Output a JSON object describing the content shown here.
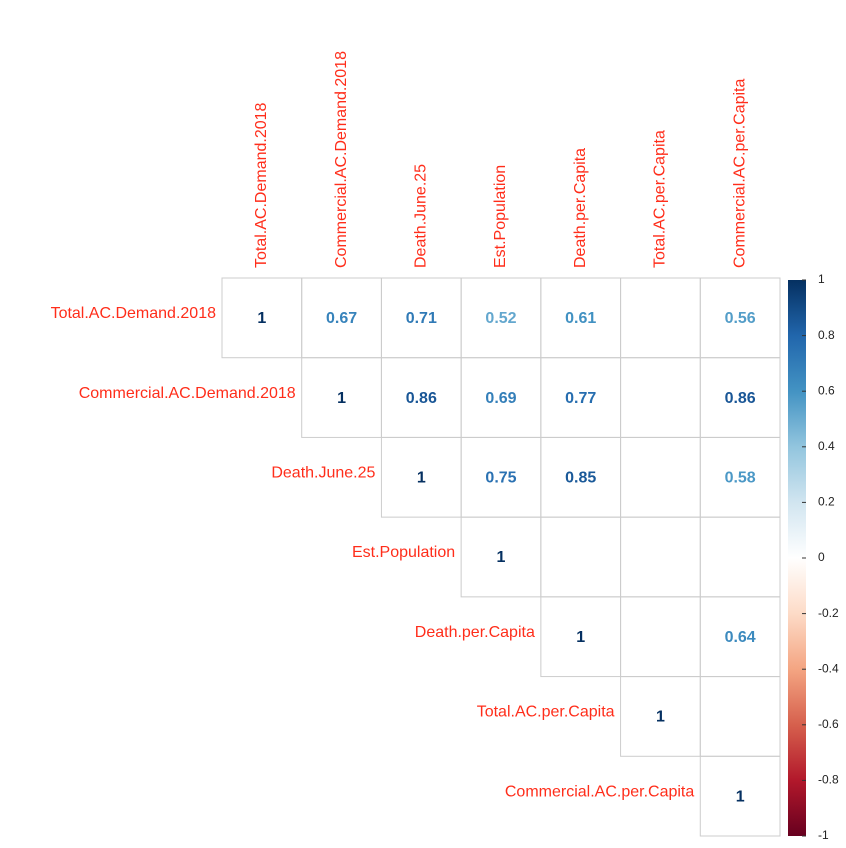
{
  "chart_data": {
    "type": "corrplot",
    "variables": [
      "Total.AC.Demand.2018",
      "Commercial.AC.Demand.2018",
      "Death.June.25",
      "Est.Population",
      "Death.per.Capita",
      "Total.AC.per.Capita",
      "Commercial.AC.per.Capita"
    ],
    "matrix": [
      [
        1,
        0.67,
        0.71,
        0.52,
        0.61,
        null,
        0.56
      ],
      [
        null,
        1,
        0.86,
        0.69,
        0.77,
        null,
        0.86
      ],
      [
        null,
        null,
        1,
        0.75,
        0.85,
        null,
        0.58
      ],
      [
        null,
        null,
        null,
        1,
        null,
        null,
        null
      ],
      [
        null,
        null,
        null,
        null,
        1,
        null,
        0.64
      ],
      [
        null,
        null,
        null,
        null,
        null,
        1,
        null
      ],
      [
        null,
        null,
        null,
        null,
        null,
        null,
        1
      ]
    ],
    "label_color": "#ff2d1a",
    "colorscale": [
      "#67001f",
      "#b2182b",
      "#d6604d",
      "#f4a582",
      "#fddbc7",
      "#ffffff",
      "#d1e5f0",
      "#92c5de",
      "#4393c3",
      "#2166ac",
      "#053061"
    ],
    "clim": [
      -1,
      1
    ],
    "cticks": [
      1,
      0.8,
      0.6,
      0.4,
      0.2,
      0,
      -0.2,
      -0.4,
      -0.6,
      -0.8,
      -1
    ]
  }
}
